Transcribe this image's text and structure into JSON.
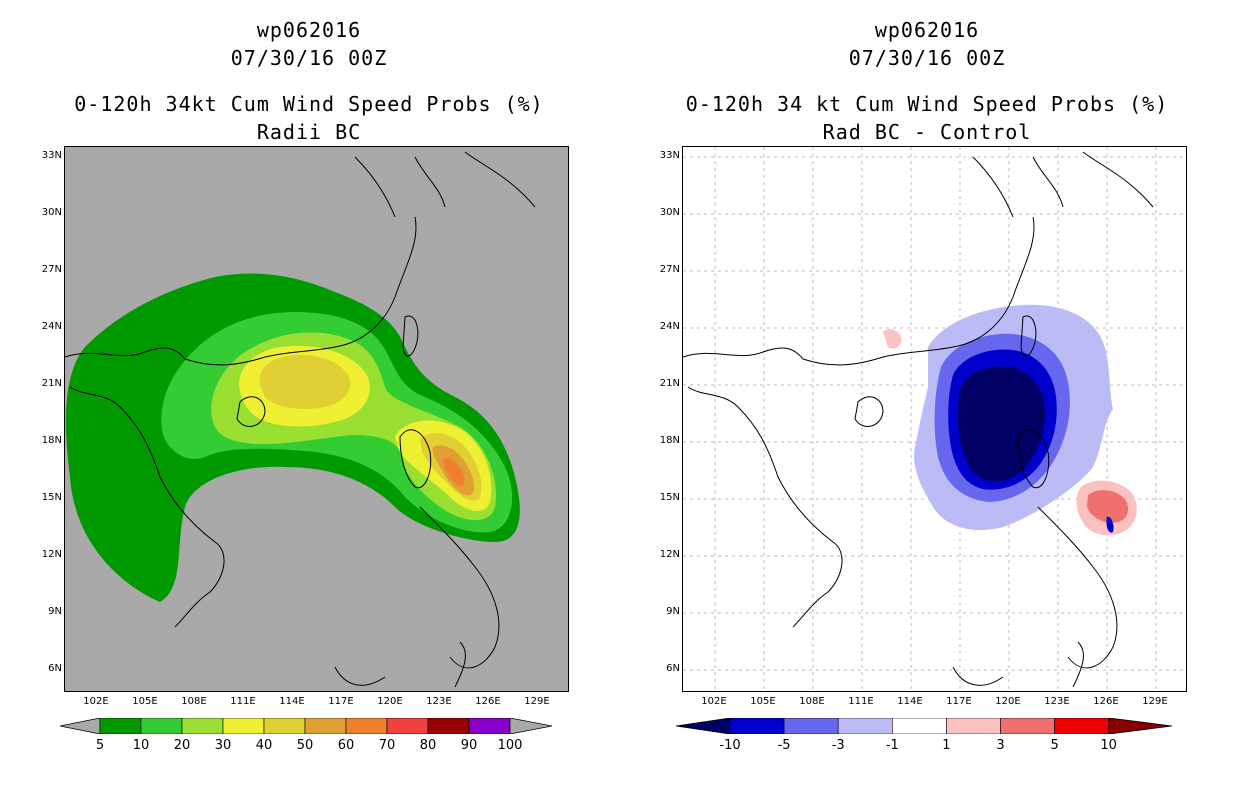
{
  "left": {
    "title_line1": "wp062016",
    "title_line2": "07/30/16 00Z",
    "title_line3": "0-120h 34kt Cum Wind Speed Probs (%)",
    "title_line4": "Radii BC",
    "colorbar": {
      "labels": [
        "5",
        "10",
        "20",
        "30",
        "40",
        "50",
        "60",
        "70",
        "80",
        "90",
        "100"
      ],
      "colors": [
        "#009900",
        "#33cc33",
        "#99e033",
        "#f0f033",
        "#e0d033",
        "#e0a033",
        "#f08030",
        "#f04040",
        "#990000",
        "#8800cc"
      ]
    }
  },
  "right": {
    "title_line1": "wp062016",
    "title_line2": "07/30/16 00Z",
    "title_line3": "0-120h 34 kt Cum Wind Speed Probs (%)",
    "title_line4": "Rad BC - Control",
    "colorbar": {
      "labels": [
        "-10",
        "-5",
        "-3",
        "-1",
        "1",
        "3",
        "5",
        "10"
      ],
      "colors": [
        "#0000cc",
        "#6666ee",
        "#bbbbf5",
        "#ffffff",
        "#fbc0c0",
        "#f07070",
        "#ee0000"
      ],
      "low_arrow_color": "#000066",
      "high_arrow_color": "#880000"
    }
  },
  "lat_labels": [
    "33N",
    "30N",
    "27N",
    "24N",
    "21N",
    "18N",
    "15N",
    "12N",
    "9N",
    "6N"
  ],
  "lon_labels": [
    "102E",
    "105E",
    "108E",
    "111E",
    "114E",
    "117E",
    "120E",
    "123E",
    "126E",
    "129E"
  ]
}
